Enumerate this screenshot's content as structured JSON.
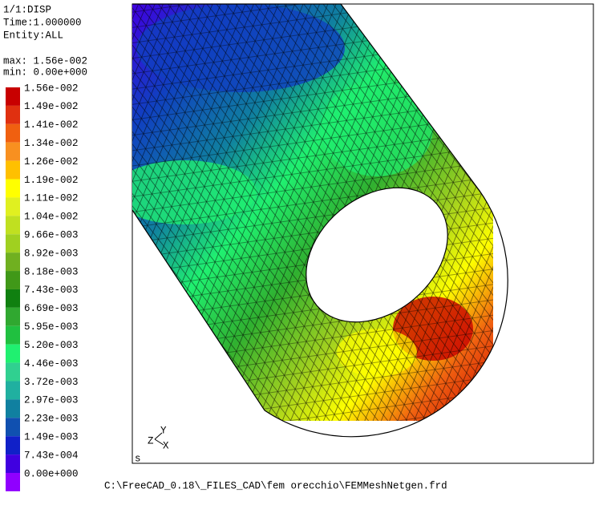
{
  "header": {
    "lines": [
      "1/1:DISP",
      "Time:1.000000",
      "Entity:ALL"
    ],
    "max": "max: 1.56e-002",
    "min": "min: 0.00e+000"
  },
  "legend": {
    "entries": [
      {
        "label": "1.56e-002",
        "color": "#c80000"
      },
      {
        "label": "1.49e-002",
        "color": "#e03010"
      },
      {
        "label": "1.41e-002",
        "color": "#f06010"
      },
      {
        "label": "1.34e-002",
        "color": "#f89020"
      },
      {
        "label": "1.26e-002",
        "color": "#ffc000"
      },
      {
        "label": "1.19e-002",
        "color": "#ffff00"
      },
      {
        "label": "1.11e-002",
        "color": "#e0f020"
      },
      {
        "label": "1.04e-002",
        "color": "#c0e020"
      },
      {
        "label": "9.66e-003",
        "color": "#a0d020"
      },
      {
        "label": "8.92e-003",
        "color": "#70b020"
      },
      {
        "label": "8.18e-003",
        "color": "#409818"
      },
      {
        "label": "7.43e-003",
        "color": "#108010"
      },
      {
        "label": "6.69e-003",
        "color": "#30a830"
      },
      {
        "label": "5.95e-003",
        "color": "#20c040"
      },
      {
        "label": "5.20e-003",
        "color": "#20f070"
      },
      {
        "label": "4.46e-003",
        "color": "#30d090"
      },
      {
        "label": "3.72e-003",
        "color": "#20b0a0"
      },
      {
        "label": "2.97e-003",
        "color": "#1080a0"
      },
      {
        "label": "2.23e-003",
        "color": "#1050b0"
      },
      {
        "label": "1.49e-003",
        "color": "#1020c8"
      },
      {
        "label": "7.43e-004",
        "color": "#4000e0"
      },
      {
        "label": "0.00e+000",
        "color": "#9000ff"
      }
    ]
  },
  "triad": {
    "z": "Z",
    "y": "Y",
    "x": "X"
  },
  "viewport_mark": "s",
  "footer": "C:\\FreeCAD_0.18\\_FILES_CAD\\fem orecchio\\FEMMeshNetgen.frd"
}
